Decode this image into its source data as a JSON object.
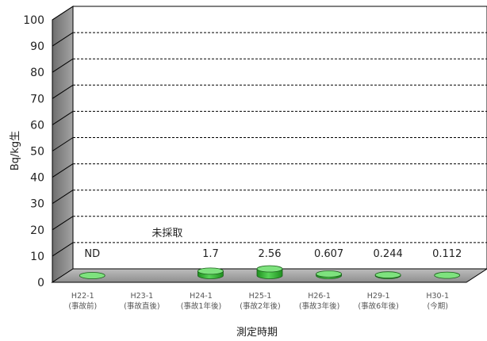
{
  "chart_data": {
    "type": "bar",
    "style": "3d-cylinder",
    "categories": [
      {
        "line1": "H22-1",
        "line2": "(事故前)"
      },
      {
        "line1": "H23-1",
        "line2": "(事故直後)"
      },
      {
        "line1": "H24-1",
        "line2": "(事故1年後)"
      },
      {
        "line1": "H25-1",
        "line2": "(事故2年後)"
      },
      {
        "line1": "H26-1",
        "line2": "(事故3年後)"
      },
      {
        "line1": "H29-1",
        "line2": "(事故6年後)"
      },
      {
        "line1": "H30-1",
        "line2": "(今期)"
      }
    ],
    "values": [
      0,
      null,
      1.7,
      2.56,
      0.607,
      0.244,
      0.112
    ],
    "data_labels": [
      "ND",
      "未採取",
      "1.7",
      "2.56",
      "0.607",
      "0.244",
      "0.112"
    ],
    "xlabel": "測定時期",
    "ylabel": "Bq/kg生",
    "ylim": [
      0,
      100
    ],
    "yticks": [
      0,
      10,
      20,
      30,
      40,
      50,
      60,
      70,
      80,
      90,
      100
    ],
    "grid": true,
    "legend": "none",
    "colors": {
      "bar": "#33bb33",
      "bar_top": "#7ee27e",
      "wall": "#8c8c8c",
      "floor": "#a8a8a8",
      "grid": "#000000"
    }
  }
}
